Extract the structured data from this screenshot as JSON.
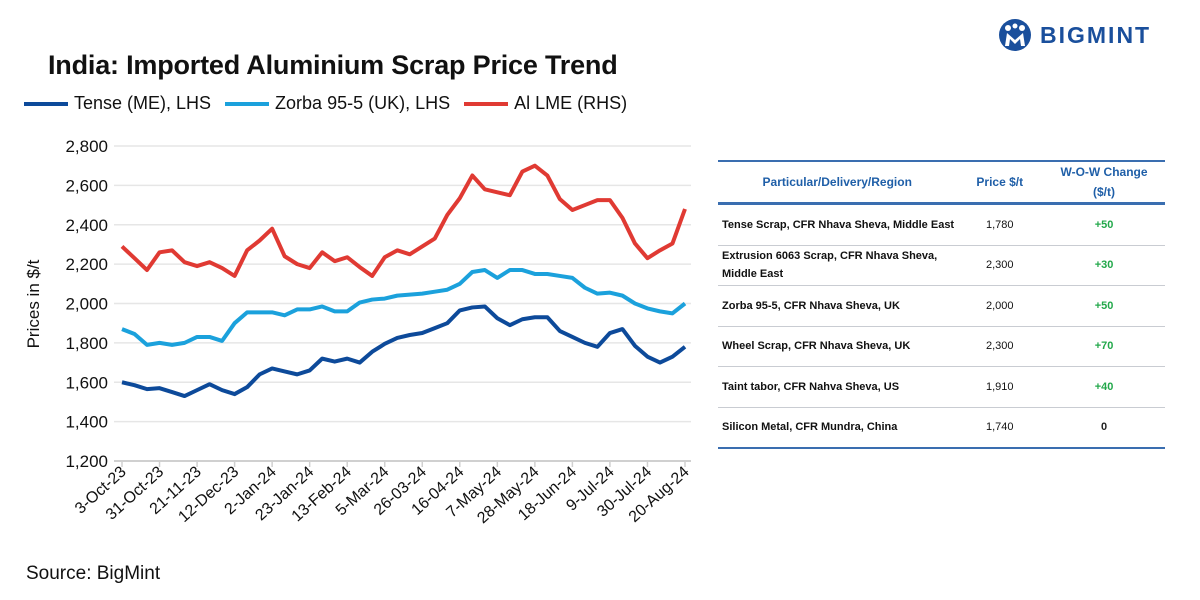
{
  "brand": {
    "name": "BIGMINT",
    "color": "#1a4f9c"
  },
  "source": "Source: BigMint",
  "chart_data": {
    "type": "line",
    "title": "India: Imported Aluminium Scrap Price Trend",
    "ylabel": "Prices in $/t",
    "ylim": [
      1200,
      2800
    ],
    "yticks": [
      "1,200",
      "1,400",
      "1,600",
      "1,800",
      "2,000",
      "2,200",
      "2,400",
      "2,600",
      "2,800"
    ],
    "x_tick_labels": [
      "3-Oct-23",
      "31-Oct-23",
      "21-11-23",
      "12-Dec-23",
      "2-Jan-24",
      "23-Jan-24",
      "13-Feb-24",
      "5-Mar-24",
      "26-03-24",
      "16-04-24",
      "7-May-24",
      "28-May-24",
      "18-Jun-24",
      "9-Jul-24",
      "30-Jul-24",
      "20-Aug-24"
    ],
    "grid": true,
    "legend": "top",
    "series": [
      {
        "name": "Tense (ME), LHS",
        "color": "#0d4a9a",
        "values": [
          1600,
          1585,
          1565,
          1570,
          1550,
          1530,
          1560,
          1590,
          1560,
          1540,
          1575,
          1640,
          1670,
          1655,
          1640,
          1660,
          1720,
          1705,
          1720,
          1700,
          1755,
          1795,
          1825,
          1840,
          1850,
          1875,
          1900,
          1965,
          1980,
          1985,
          1925,
          1890,
          1920,
          1930,
          1930,
          1860,
          1830,
          1800,
          1780,
          1850,
          1870,
          1785,
          1730,
          1700,
          1730,
          1780
        ]
      },
      {
        "name": "Zorba 95-5 (UK), LHS",
        "color": "#1ba1dc",
        "values": [
          1870,
          1845,
          1790,
          1800,
          1790,
          1800,
          1830,
          1830,
          1810,
          1900,
          1955,
          1955,
          1955,
          1940,
          1970,
          1970,
          1985,
          1960,
          1960,
          2005,
          2020,
          2025,
          2040,
          2045,
          2050,
          2060,
          2070,
          2100,
          2160,
          2170,
          2130,
          2170,
          2170,
          2150,
          2150,
          2140,
          2130,
          2080,
          2050,
          2055,
          2040,
          2000,
          1975,
          1960,
          1950,
          2000
        ]
      },
      {
        "name": "Al LME (RHS)",
        "color": "#e03a33",
        "values": [
          2290,
          2230,
          2170,
          2260,
          2270,
          2210,
          2190,
          2210,
          2180,
          2140,
          2270,
          2320,
          2380,
          2240,
          2200,
          2180,
          2260,
          2215,
          2235,
          2185,
          2140,
          2235,
          2270,
          2250,
          2290,
          2330,
          2450,
          2535,
          2650,
          2580,
          2565,
          2550,
          2670,
          2700,
          2650,
          2530,
          2475,
          2500,
          2525,
          2525,
          2435,
          2305,
          2230,
          2270,
          2305,
          2480
        ]
      }
    ]
  },
  "table": {
    "headers": [
      "Particular/Delivery/Region",
      "Price $/t",
      "W-O-W Change ($/t)"
    ],
    "positive_color": "#22a84a",
    "rows": [
      {
        "name": "Tense Scrap, CFR Nhava Sheva, Middle East",
        "price": "1,780",
        "change": "+50"
      },
      {
        "name": "Extrusion 6063 Scrap, CFR Nhava Sheva, Middle East",
        "price": "2,300",
        "change": "+30"
      },
      {
        "name": "Zorba 95-5, CFR Nhava Sheva, UK",
        "price": "2,000",
        "change": "+50"
      },
      {
        "name": "Wheel Scrap, CFR Nhava Sheva, UK",
        "price": "2,300",
        "change": "+70"
      },
      {
        "name": "Taint tabor, CFR Nahva Sheva, US",
        "price": "1,910",
        "change": "+40"
      },
      {
        "name": "Silicon Metal, CFR Mundra, China",
        "price": "1,740",
        "change": "0"
      }
    ]
  }
}
